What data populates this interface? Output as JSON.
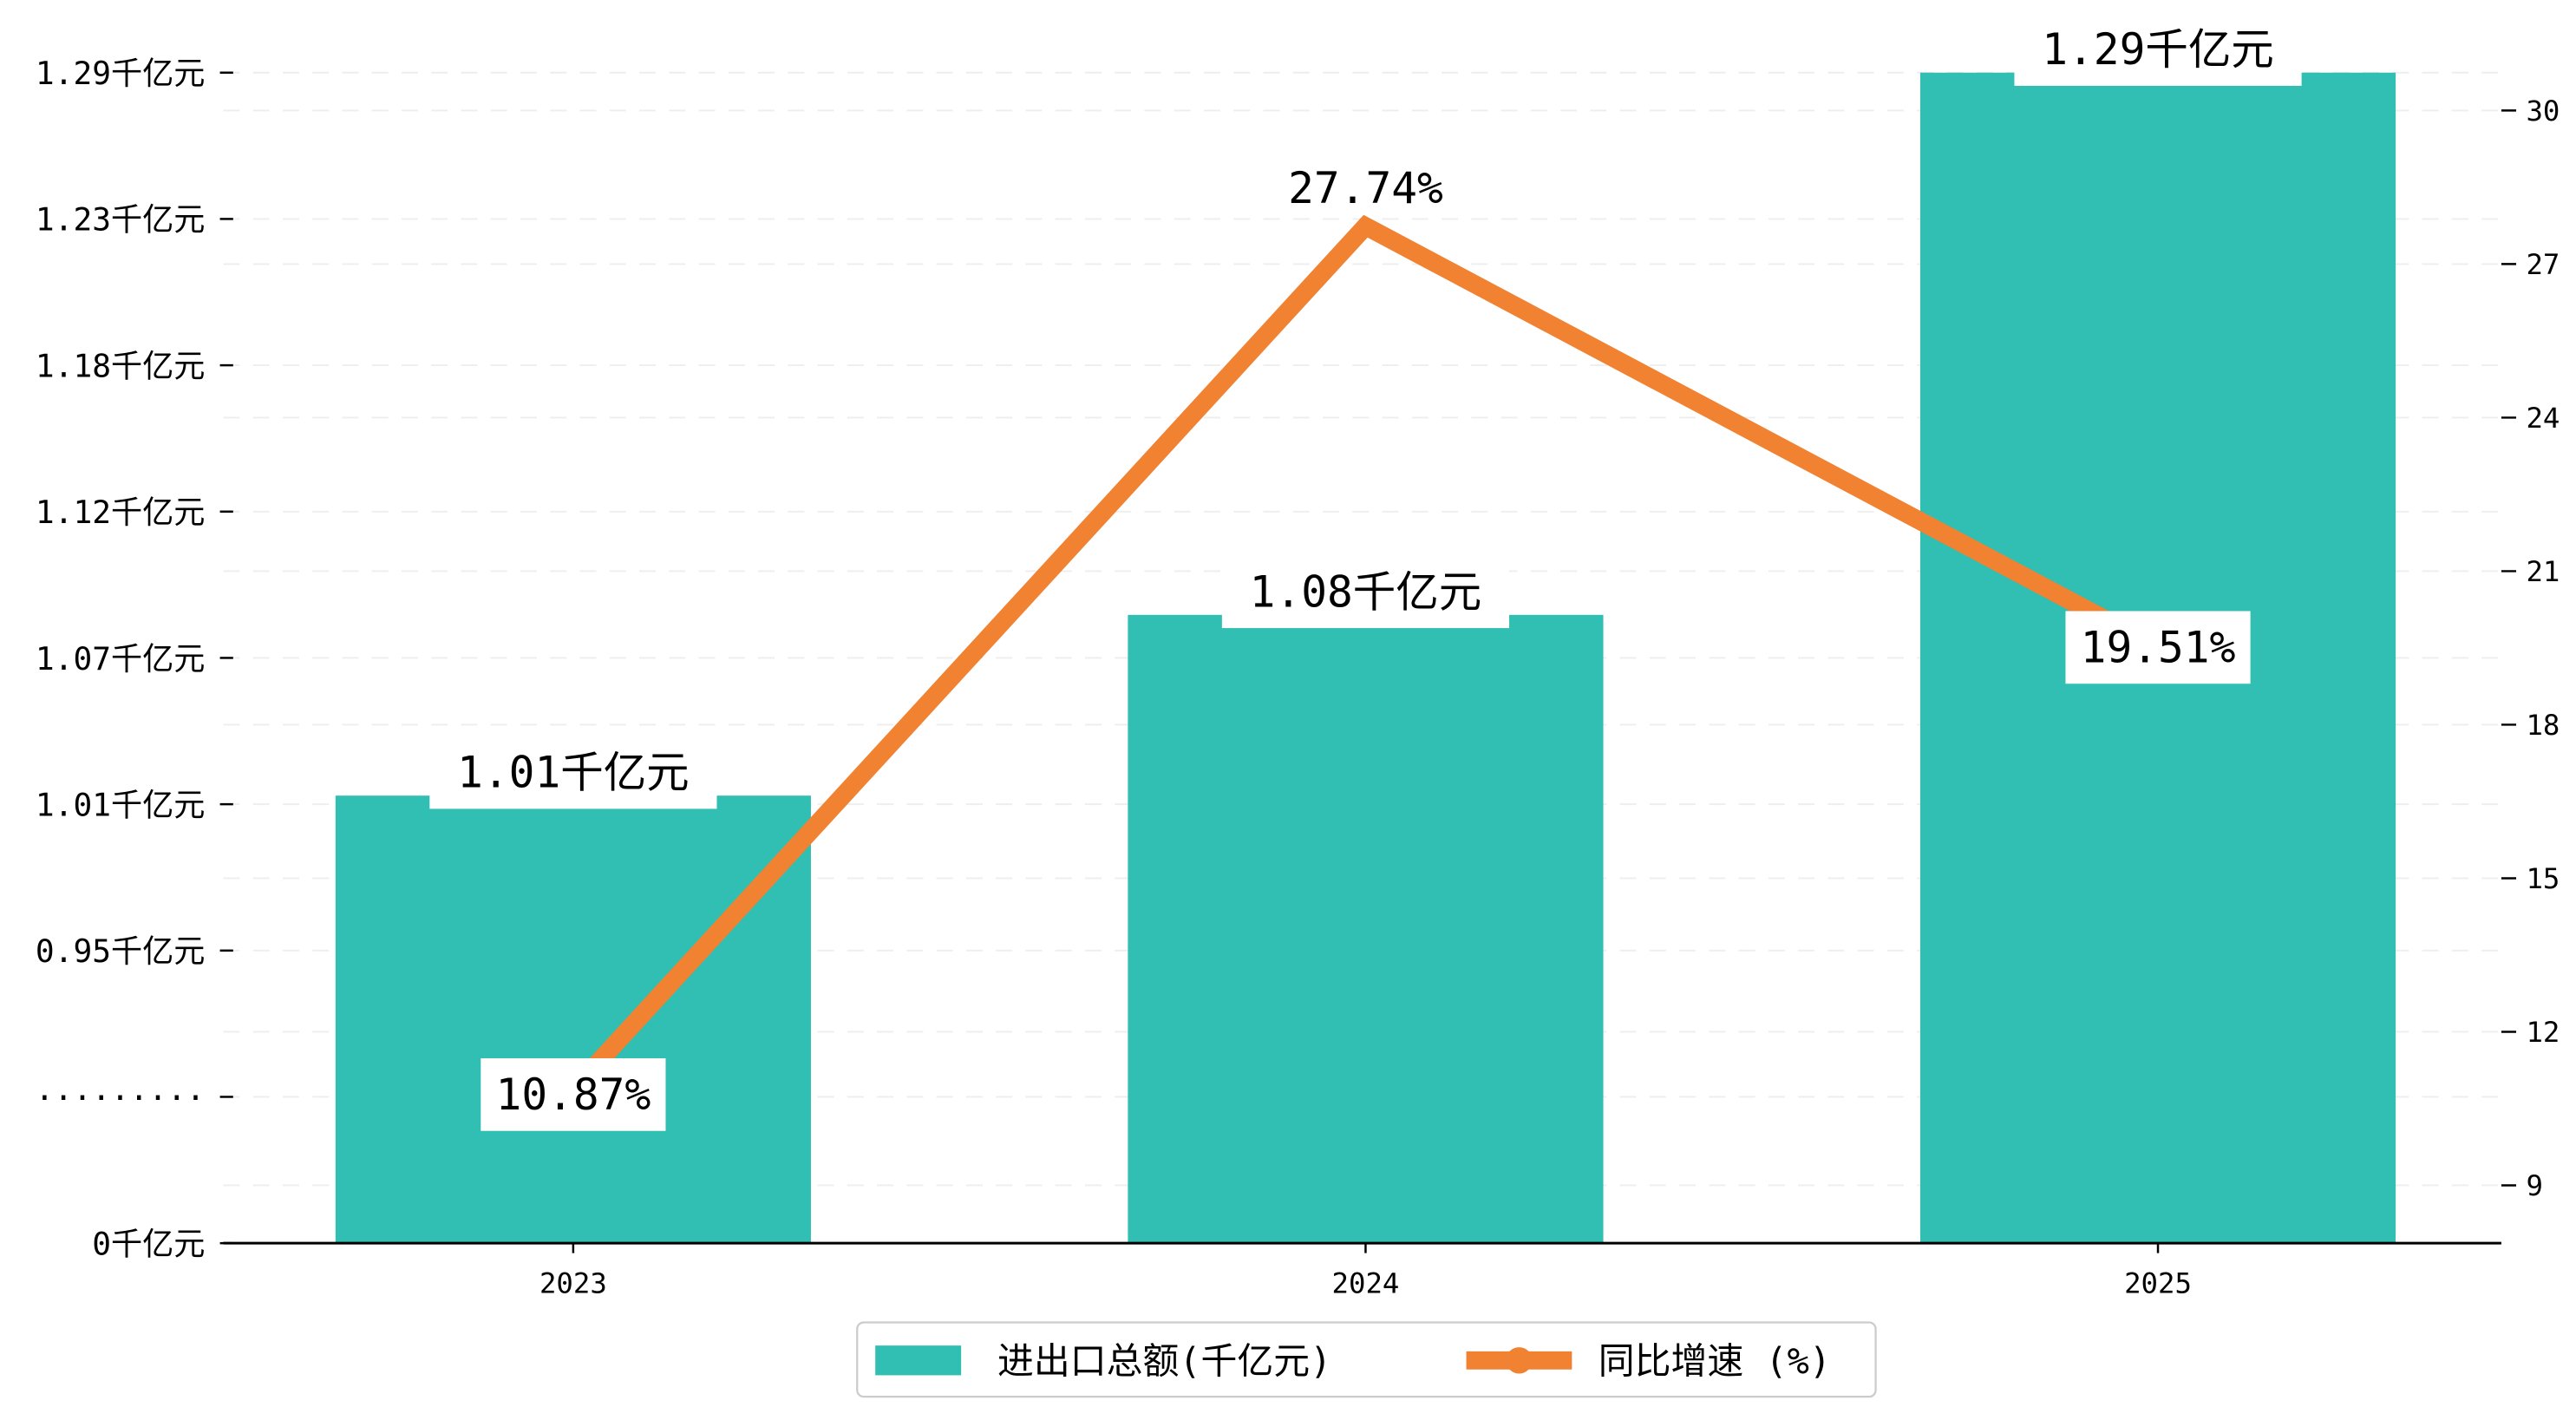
{
  "chart_data": {
    "type": "bar+line",
    "title": "",
    "categories": [
      "2023",
      "2024",
      "2025"
    ],
    "series": [
      {
        "name": "进出口总额(千亿元)",
        "type": "bar",
        "axis": "left",
        "values": [
          1.01,
          1.08,
          1.29
        ],
        "labels": [
          "1.01千亿元",
          "1.08千亿元",
          "1.29千亿元"
        ],
        "color": "#30BFB2"
      },
      {
        "name": "同比增速 (%)",
        "type": "line",
        "axis": "right",
        "values": [
          10.87,
          27.74,
          19.51
        ],
        "labels": [
          "10.87%",
          "27.74%",
          "19.51%"
        ],
        "color": "#F08232"
      }
    ],
    "left_axis": {
      "tick_labels": [
        "0千亿元",
        "·········",
        "0.95千亿元",
        "1.01千亿元",
        "1.07千亿元",
        "1.12千亿元",
        "1.18千亿元",
        "1.23千亿元",
        "1.29千亿元"
      ],
      "broken_range": [
        0.95,
        1.29
      ]
    },
    "right_axis": {
      "ticks": [
        9,
        12,
        15,
        18,
        21,
        24,
        27,
        30
      ],
      "range": [
        7.87,
        30.74
      ]
    },
    "grid": true,
    "legend_position": "bottom-center",
    "legend": [
      "进出口总额(千亿元)",
      "同比增速 (%)"
    ]
  }
}
